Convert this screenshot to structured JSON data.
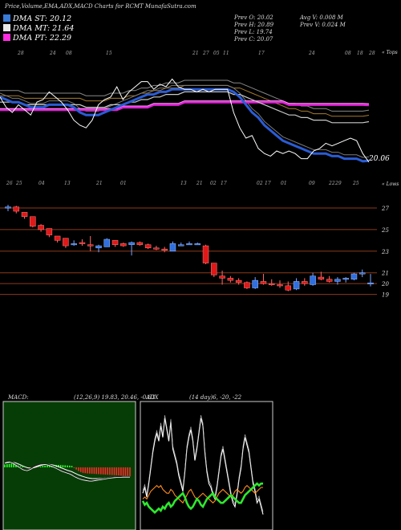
{
  "page": {
    "title": "Price,Volume,EMA,ADX,MACD Charts for RCMT MunafaSutra.com"
  },
  "legend": {
    "st": {
      "label": "DMA ST: 20.12",
      "color": "#3a7bd5"
    },
    "mt": {
      "label": "DMA MT: 21.64",
      "color": "#e8e8e8"
    },
    "pt": {
      "label": "DMA PT: 22.29",
      "color": "#ff2de0"
    }
  },
  "stats": {
    "prev_open": "Prev O: 20.02",
    "prev_high": "Prev H: 20.89",
    "prev_low": "Prev L: 19.74",
    "prev_close": "Prev C: 20.07",
    "avg_volume": "Avg V: 0.008 M",
    "prev_volume": "Prev V: 0.024 M"
  },
  "labels": {
    "tops": "« Tops",
    "lows": "« Lows",
    "last_price": "20.06"
  },
  "chart_data": [
    {
      "type": "line",
      "id": "price-ema",
      "title": "Price,Volume,EMA,ADX,MACD Charts for RCMT",
      "series": [
        {
          "values": [
            22.6,
            22.2,
            22.0,
            22.3,
            22.1,
            21.9,
            22.4,
            22.5,
            22.8,
            22.6,
            22.4,
            22.1,
            21.7,
            21.5,
            21.4,
            21.7,
            22.3,
            22.5,
            22.6,
            23.0,
            22.5,
            22.8,
            23.0,
            23.2,
            23.2,
            22.9,
            23.1,
            23.0,
            23.3,
            23.0,
            22.9,
            22.9,
            22.8,
            22.9,
            22.8,
            22.9,
            22.9,
            22.9,
            22.0,
            21.4,
            21.0,
            21.1,
            20.6,
            20.4,
            20.3,
            20.5,
            20.4,
            20.5,
            20.4,
            20.2,
            20.2,
            20.5,
            20.6,
            20.8,
            20.7,
            20.8,
            20.9,
            21.0,
            20.9,
            20.4,
            20.07
          ]
        },
        {
          "values": [
            22.6,
            22.5,
            22.4,
            22.4,
            22.3,
            22.2,
            22.2,
            22.2,
            22.3,
            22.3,
            22.3,
            22.3,
            22.2,
            22.0,
            21.9,
            21.9,
            21.9,
            22.0,
            22.1,
            22.2,
            22.3,
            22.4,
            22.5,
            22.6,
            22.7,
            22.7,
            22.8,
            22.8,
            22.9,
            22.9,
            22.9,
            22.9,
            22.9,
            22.9,
            22.9,
            22.9,
            22.9,
            22.9,
            22.8,
            22.6,
            22.3,
            22.0,
            21.8,
            21.5,
            21.3,
            21.1,
            20.9,
            20.8,
            20.7,
            20.6,
            20.5,
            20.4,
            20.4,
            20.4,
            20.3,
            20.3,
            20.2,
            20.2,
            20.2,
            20.1,
            20.12
          ]
        },
        {
          "values": [
            22.4,
            22.4,
            22.4,
            22.4,
            22.3,
            22.3,
            22.3,
            22.3,
            22.3,
            22.3,
            22.3,
            22.3,
            22.3,
            22.3,
            22.2,
            22.2,
            22.2,
            22.2,
            22.3,
            22.3,
            22.3,
            22.4,
            22.4,
            22.5,
            22.5,
            22.6,
            22.6,
            22.7,
            22.7,
            22.7,
            22.8,
            22.8,
            22.8,
            22.8,
            22.8,
            22.8,
            22.8,
            22.8,
            22.7,
            22.7,
            22.6,
            22.5,
            22.4,
            22.3,
            22.2,
            22.1,
            22.0,
            21.9,
            21.9,
            21.8,
            21.8,
            21.7,
            21.7,
            21.7,
            21.6,
            21.6,
            21.6,
            21.6,
            21.6,
            21.6,
            21.64
          ]
        },
        {
          "values": [
            22.1,
            22.1,
            22.1,
            22.1,
            22.1,
            22.1,
            22.1,
            22.1,
            22.1,
            22.1,
            22.1,
            22.1,
            22.1,
            22.1,
            22.1,
            22.1,
            22.1,
            22.1,
            22.1,
            22.1,
            22.2,
            22.2,
            22.2,
            22.2,
            22.2,
            22.3,
            22.3,
            22.3,
            22.3,
            22.3,
            22.4,
            22.4,
            22.4,
            22.4,
            22.4,
            22.4,
            22.4,
            22.4,
            22.4,
            22.4,
            22.4,
            22.4,
            22.4,
            22.4,
            22.4,
            22.4,
            22.4,
            22.3,
            22.3,
            22.3,
            22.3,
            22.3,
            22.3,
            22.3,
            22.3,
            22.3,
            22.3,
            22.3,
            22.3,
            22.3,
            22.29
          ]
        }
      ]
    },
    {
      "type": "bar",
      "id": "candles",
      "ylim": [
        18.8,
        27.6
      ],
      "tick_labels": [
        "27",
        "25",
        "23",
        "21",
        "20",
        "19"
      ],
      "ticks": [
        27,
        25,
        23,
        21,
        20,
        19
      ],
      "ohlc": [
        {
          "o": 27.0,
          "h": 27.3,
          "l": 26.7,
          "c": 27.1
        },
        {
          "o": 27.1,
          "h": 27.2,
          "l": 26.5,
          "c": 26.7
        },
        {
          "o": 26.6,
          "h": 26.6,
          "l": 26.0,
          "c": 26.2
        },
        {
          "o": 26.2,
          "h": 26.2,
          "l": 25.2,
          "c": 25.3
        },
        {
          "o": 25.4,
          "h": 25.5,
          "l": 24.8,
          "c": 25.0
        },
        {
          "o": 25.1,
          "h": 25.1,
          "l": 24.3,
          "c": 24.5
        },
        {
          "o": 24.4,
          "h": 24.4,
          "l": 23.8,
          "c": 24.0
        },
        {
          "o": 24.2,
          "h": 24.2,
          "l": 23.3,
          "c": 23.5
        },
        {
          "o": 23.6,
          "h": 24.0,
          "l": 23.5,
          "c": 23.7
        },
        {
          "o": 23.8,
          "h": 24.1,
          "l": 23.5,
          "c": 23.7
        },
        {
          "o": 23.6,
          "h": 24.4,
          "l": 23.0,
          "c": 23.5
        },
        {
          "o": 23.3,
          "h": 23.6,
          "l": 22.9,
          "c": 23.5
        },
        {
          "o": 23.4,
          "h": 24.2,
          "l": 23.4,
          "c": 24.1
        },
        {
          "o": 24.0,
          "h": 24.0,
          "l": 23.4,
          "c": 23.6
        },
        {
          "o": 23.7,
          "h": 23.8,
          "l": 23.4,
          "c": 23.5
        },
        {
          "o": 23.6,
          "h": 23.9,
          "l": 22.6,
          "c": 23.8
        },
        {
          "o": 23.8,
          "h": 23.9,
          "l": 23.5,
          "c": 23.6
        },
        {
          "o": 23.6,
          "h": 23.7,
          "l": 23.2,
          "c": 23.3
        },
        {
          "o": 23.3,
          "h": 23.5,
          "l": 23.1,
          "c": 23.2
        },
        {
          "o": 23.2,
          "h": 23.4,
          "l": 22.9,
          "c": 23.1
        },
        {
          "o": 23.0,
          "h": 23.9,
          "l": 23.0,
          "c": 23.7
        },
        {
          "o": 23.6,
          "h": 23.8,
          "l": 23.5,
          "c": 23.6
        },
        {
          "o": 23.7,
          "h": 23.9,
          "l": 23.6,
          "c": 23.7
        },
        {
          "o": 23.6,
          "h": 23.8,
          "l": 23.6,
          "c": 23.7
        },
        {
          "o": 23.5,
          "h": 23.6,
          "l": 21.8,
          "c": 21.9
        },
        {
          "o": 21.9,
          "h": 21.9,
          "l": 20.6,
          "c": 20.8
        },
        {
          "o": 20.7,
          "h": 21.2,
          "l": 19.9,
          "c": 20.5
        },
        {
          "o": 20.5,
          "h": 20.7,
          "l": 20.1,
          "c": 20.3
        },
        {
          "o": 20.3,
          "h": 20.5,
          "l": 19.9,
          "c": 20.1
        },
        {
          "o": 20.1,
          "h": 20.2,
          "l": 19.5,
          "c": 19.6
        },
        {
          "o": 19.6,
          "h": 20.6,
          "l": 19.5,
          "c": 20.3
        },
        {
          "o": 20.2,
          "h": 20.9,
          "l": 19.9,
          "c": 20.0
        },
        {
          "o": 20.0,
          "h": 20.4,
          "l": 19.8,
          "c": 19.9
        },
        {
          "o": 19.9,
          "h": 20.3,
          "l": 19.6,
          "c": 19.8
        },
        {
          "o": 19.8,
          "h": 20.2,
          "l": 19.3,
          "c": 19.4
        },
        {
          "o": 19.5,
          "h": 20.5,
          "l": 19.4,
          "c": 20.2
        },
        {
          "o": 20.2,
          "h": 20.5,
          "l": 19.8,
          "c": 20.0
        },
        {
          "o": 19.9,
          "h": 21.0,
          "l": 19.8,
          "c": 20.7
        },
        {
          "o": 20.6,
          "h": 21.1,
          "l": 20.3,
          "c": 20.4
        },
        {
          "o": 20.4,
          "h": 20.7,
          "l": 20.1,
          "c": 20.2
        },
        {
          "o": 20.2,
          "h": 20.6,
          "l": 19.9,
          "c": 20.4
        },
        {
          "o": 20.4,
          "h": 20.6,
          "l": 20.1,
          "c": 20.5
        },
        {
          "o": 20.4,
          "h": 21.0,
          "l": 20.3,
          "c": 20.9
        },
        {
          "o": 20.9,
          "h": 21.3,
          "l": 20.6,
          "c": 21.0
        },
        {
          "o": 20.02,
          "h": 20.89,
          "l": 19.74,
          "c": 20.07
        }
      ]
    },
    {
      "type": "bar",
      "id": "macd",
      "title": "MACD:",
      "params": "(12,26,9) 19.83, 20.46, -0.63",
      "histogram": [
        0.2,
        0.22,
        0.25,
        0.26,
        0.25,
        0.22,
        0.18,
        0.12,
        0.06,
        0.02,
        -0.03,
        -0.06,
        -0.08,
        -0.06,
        -0.03,
        0.02,
        0.06,
        0.1,
        0.12,
        0.14,
        0.15,
        0.16,
        0.17,
        0.17,
        0.17,
        0.16,
        0.15,
        0.14,
        0.13,
        0.12,
        0.1,
        -0.05,
        -0.15,
        -0.25,
        -0.32,
        -0.38,
        -0.4,
        -0.42,
        -0.43,
        -0.44,
        -0.45,
        -0.46,
        -0.47,
        -0.48,
        -0.49,
        -0.5,
        -0.51,
        -0.52,
        -0.53,
        -0.54,
        -0.55,
        -0.56,
        -0.57,
        -0.58,
        -0.6,
        -0.62,
        -0.63
      ],
      "macd_line": [
        0.35,
        0.4,
        0.42,
        0.38,
        0.3,
        0.2,
        0.1,
        0.0,
        -0.1,
        -0.15,
        -0.18,
        -0.12,
        -0.05,
        0.05,
        0.12,
        0.18,
        0.22,
        0.24,
        0.25,
        0.22,
        0.18,
        0.12,
        0.05,
        -0.02,
        -0.1,
        -0.18,
        -0.25,
        -0.3,
        -0.35,
        -0.4,
        -0.48,
        -0.58,
        -0.65,
        -0.72,
        -0.78,
        -0.82,
        -0.85,
        -0.88,
        -0.9,
        -0.9,
        -0.88,
        -0.85,
        -0.82,
        -0.8,
        -0.78,
        -0.75,
        -0.72,
        -0.7,
        -0.68,
        -0.66,
        -0.65,
        -0.64,
        -0.64,
        -0.63,
        -0.63,
        -0.63,
        -0.63
      ],
      "signal_line": [
        0.3,
        0.33,
        0.36,
        0.36,
        0.34,
        0.3,
        0.24,
        0.18,
        0.1,
        0.04,
        -0.02,
        -0.05,
        -0.05,
        -0.02,
        0.03,
        0.08,
        0.13,
        0.17,
        0.2,
        0.21,
        0.2,
        0.18,
        0.15,
        0.1,
        0.05,
        -0.02,
        -0.08,
        -0.14,
        -0.2,
        -0.25,
        -0.3,
        -0.38,
        -0.45,
        -0.52,
        -0.58,
        -0.63,
        -0.68,
        -0.72,
        -0.75,
        -0.77,
        -0.78,
        -0.78,
        -0.77,
        -0.76,
        -0.75,
        -0.73,
        -0.71,
        -0.69,
        -0.67,
        -0.66,
        -0.65,
        -0.64,
        -0.64,
        -0.63,
        -0.63,
        -0.63,
        -0.63
      ]
    },
    {
      "type": "line",
      "id": "adx",
      "title": "ADX",
      "params": "(14 day)6, -20, -22",
      "series": [
        {
          "color": "#ffffff",
          "values": [
            17,
            20,
            15,
            22,
            30,
            38,
            44,
            48,
            44,
            52,
            46,
            56,
            50,
            44,
            54,
            40,
            36,
            32,
            26,
            22,
            18,
            28,
            40,
            46,
            50,
            44,
            34,
            40,
            48,
            56,
            52,
            38,
            28,
            22,
            20,
            16,
            14,
            20,
            28,
            36,
            40,
            34,
            28,
            22,
            16,
            12,
            10,
            16,
            24,
            30,
            40,
            46,
            42,
            38,
            30,
            22,
            18,
            12,
            14,
            10,
            6
          ]
        },
        {
          "color": "#ff8c1a",
          "values": [
            14,
            15,
            14,
            16,
            18,
            19,
            20,
            21,
            20,
            21,
            19,
            18,
            17,
            17,
            19,
            18,
            16,
            15,
            14,
            13,
            12,
            14,
            16,
            18,
            19,
            17,
            15,
            14,
            15,
            16,
            17,
            16,
            15,
            14,
            13,
            12,
            13,
            15,
            17,
            18,
            19,
            18,
            17,
            16,
            15,
            16,
            18,
            19,
            18,
            17,
            18,
            20,
            21,
            20,
            19,
            18,
            17,
            18,
            19,
            20,
            20
          ]
        },
        {
          "color": "#2ee82e",
          "values": [
            13,
            11,
            12,
            10,
            9,
            8,
            7,
            8,
            9,
            8,
            10,
            9,
            11,
            12,
            10,
            11,
            13,
            14,
            15,
            16,
            17,
            15,
            12,
            10,
            9,
            10,
            12,
            14,
            13,
            11,
            10,
            12,
            14,
            15,
            16,
            17,
            15,
            14,
            13,
            12,
            12,
            13,
            14,
            15,
            16,
            15,
            14,
            13,
            12,
            12,
            14,
            16,
            17,
            18,
            19,
            20,
            21,
            22,
            21,
            22,
            22
          ]
        }
      ]
    }
  ],
  "date_labels_top": [
    "28",
    "24",
    "08",
    "15",
    "21",
    "27",
    "05",
    "11",
    "17",
    "24",
    "08",
    "18",
    "28"
  ],
  "date_labels_bottom": [
    "26",
    "25",
    "04",
    "13",
    "21",
    "01",
    "13",
    "21",
    "02",
    "17",
    "02",
    "17",
    "01",
    "09",
    "22",
    "29",
    "25"
  ]
}
